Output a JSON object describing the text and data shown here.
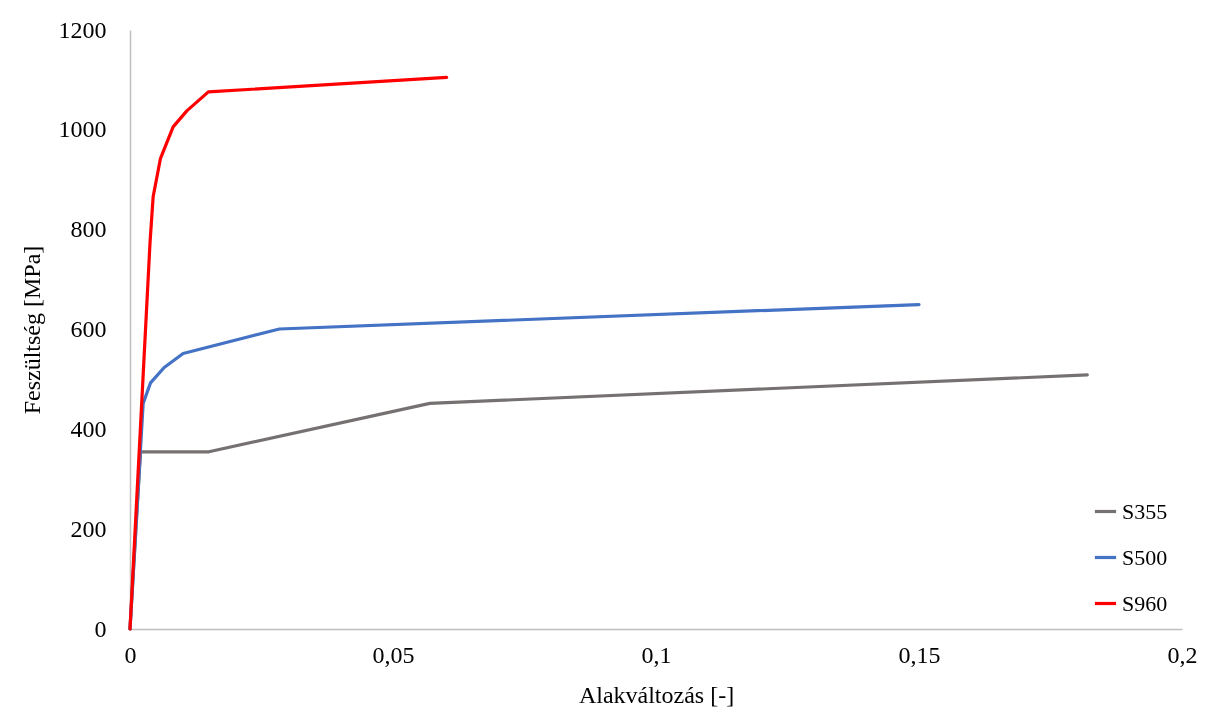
{
  "chart_data": {
    "type": "line",
    "xlabel": "Alakváltozás [-]",
    "ylabel": "Feszültség [MPa]",
    "xlim": [
      0,
      0.2
    ],
    "xticks": [
      0,
      {
        "value": 0.05,
        "label": "0,05"
      },
      {
        "value": 0.1,
        "label": "0,1"
      },
      {
        "value": 0.15,
        "label": "0,15"
      },
      {
        "value": 0.2,
        "label": "0,2"
      }
    ],
    "ylim": [
      0,
      1200
    ],
    "yticks": [
      0,
      200,
      400,
      600,
      800,
      1000,
      1200
    ],
    "grid": false,
    "legend": "bottom right",
    "marker": "none",
    "line_style": "solid",
    "series": [
      {
        "name": "S355",
        "color": "#767171",
        "x": [
          0,
          0.002,
          0.015,
          0.057,
          0.182
        ],
        "values": [
          0,
          355,
          355,
          452,
          509
        ]
      },
      {
        "name": "S500",
        "color": "#4472c4",
        "x": [
          0,
          0.0025,
          0.0039,
          0.0065,
          0.0101,
          0.0284,
          0.15
        ],
        "values": [
          0,
          452,
          493,
          524,
          552,
          601,
          650
        ]
      },
      {
        "name": "S960",
        "color": "#ff0000",
        "x": [
          0,
          0.0038,
          0.0044,
          0.0058,
          0.0082,
          0.0108,
          0.0149,
          0.0602
        ],
        "values": [
          0,
          773,
          866,
          943,
          1006,
          1038,
          1076,
          1105
        ]
      }
    ]
  }
}
